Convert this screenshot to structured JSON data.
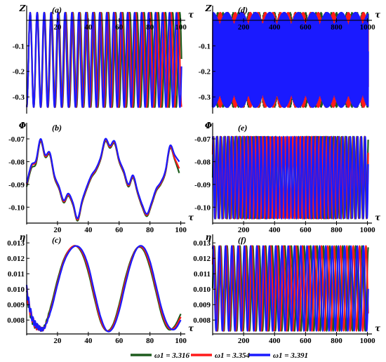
{
  "chart_data": [
    {
      "panel": "(a)",
      "type": "line",
      "ylabel": "Z",
      "xlabel": "τ",
      "xlim": [
        0,
        102
      ],
      "ylim": [
        -0.36,
        0.03
      ],
      "xticks": [
        "20",
        "40",
        "60",
        "80",
        "100"
      ],
      "yticks": [
        "-0.1",
        "-0.2",
        "-0.3"
      ],
      "series": [
        {
          "name": "ω1 = 3.316",
          "color": "#1d5c1d",
          "oscillation": {
            "min": -0.34,
            "max": 0.03,
            "period": 4.62
          }
        },
        {
          "name": "ω1 = 3.354",
          "color": "#ff1a1a",
          "oscillation": {
            "min": -0.34,
            "max": 0.03,
            "period": 4.57
          }
        },
        {
          "name": "ω1 = 3.391",
          "color": "#1a1aff",
          "oscillation": {
            "min": -0.34,
            "max": 0.03,
            "period": 4.52
          }
        }
      ]
    },
    {
      "panel": "(d)",
      "type": "line",
      "ylabel": "Z",
      "xlabel": "τ",
      "xlim": [
        0,
        1020
      ],
      "ylim": [
        -0.36,
        0.03
      ],
      "xticks": [
        "200",
        "400",
        "600",
        "800",
        "1000"
      ],
      "yticks": [
        "-0.1",
        "-0.2",
        "-0.3"
      ],
      "series": [
        {
          "name": "ω1 = 3.316",
          "color": "#1d5c1d",
          "oscillation": {
            "min": -0.34,
            "max": 0.03,
            "period": 4.62
          }
        },
        {
          "name": "ω1 = 3.354",
          "color": "#ff1a1a",
          "oscillation": {
            "min": -0.34,
            "max": 0.03,
            "period": 4.57
          }
        },
        {
          "name": "ω1 = 3.391",
          "color": "#1a1aff",
          "oscillation": {
            "min": -0.34,
            "max": 0.03,
            "period": 4.52
          }
        }
      ]
    },
    {
      "panel": "(b)",
      "type": "line",
      "ylabel": "Φ",
      "xlabel": "τ",
      "xlim": [
        0,
        102
      ],
      "ylim": [
        -0.107,
        -0.066
      ],
      "xticks": [
        "20",
        "40",
        "60",
        "80",
        "100"
      ],
      "yticks": [
        "-0.07",
        "-0.08",
        "-0.09",
        "-0.10"
      ],
      "series": [
        {
          "name": "ω1 = 3.316",
          "color": "#1d5c1d",
          "x": [
            0,
            3,
            6,
            9,
            12,
            15,
            18,
            21,
            24,
            27,
            30,
            33,
            36,
            39,
            42,
            45,
            48,
            51,
            54,
            57,
            60,
            63,
            66,
            69,
            72,
            75,
            78,
            81,
            84,
            87,
            90,
            93,
            96,
            99
          ],
          "y": [
            -0.091,
            -0.083,
            -0.081,
            -0.071,
            -0.078,
            -0.077,
            -0.087,
            -0.092,
            -0.098,
            -0.095,
            -0.099,
            -0.106,
            -0.098,
            -0.092,
            -0.087,
            -0.084,
            -0.079,
            -0.071,
            -0.074,
            -0.072,
            -0.08,
            -0.085,
            -0.091,
            -0.087,
            -0.094,
            -0.1,
            -0.104,
            -0.099,
            -0.093,
            -0.09,
            -0.085,
            -0.074,
            -0.079,
            -0.085
          ]
        },
        {
          "name": "ω1 = 3.354",
          "color": "#ff1a1a",
          "x": [
            0,
            3,
            6,
            9,
            12,
            15,
            18,
            21,
            24,
            27,
            30,
            33,
            36,
            39,
            42,
            45,
            48,
            51,
            54,
            57,
            60,
            63,
            66,
            69,
            72,
            75,
            78,
            81,
            84,
            87,
            90,
            93,
            96,
            99
          ],
          "y": [
            -0.09,
            -0.082,
            -0.08,
            -0.0705,
            -0.0775,
            -0.0765,
            -0.0865,
            -0.0915,
            -0.0975,
            -0.0945,
            -0.0985,
            -0.1055,
            -0.0975,
            -0.0915,
            -0.0865,
            -0.0835,
            -0.0785,
            -0.0705,
            -0.0735,
            -0.0715,
            -0.0795,
            -0.0845,
            -0.0905,
            -0.0865,
            -0.0935,
            -0.0995,
            -0.1035,
            -0.0985,
            -0.0925,
            -0.0895,
            -0.0845,
            -0.0735,
            -0.0785,
            -0.083
          ]
        },
        {
          "name": "ω1 = 3.391",
          "color": "#1a1aff",
          "x": [
            0,
            3,
            6,
            9,
            12,
            15,
            18,
            21,
            24,
            27,
            30,
            33,
            36,
            39,
            42,
            45,
            48,
            51,
            54,
            57,
            60,
            63,
            66,
            69,
            72,
            75,
            78,
            81,
            84,
            87,
            90,
            93,
            96,
            99
          ],
          "y": [
            -0.0895,
            -0.0815,
            -0.0795,
            -0.07,
            -0.077,
            -0.076,
            -0.086,
            -0.091,
            -0.097,
            -0.094,
            -0.098,
            -0.105,
            -0.097,
            -0.091,
            -0.086,
            -0.083,
            -0.078,
            -0.07,
            -0.073,
            -0.071,
            -0.079,
            -0.084,
            -0.09,
            -0.086,
            -0.093,
            -0.099,
            -0.103,
            -0.098,
            -0.092,
            -0.089,
            -0.084,
            -0.073,
            -0.077,
            -0.08
          ]
        }
      ]
    },
    {
      "panel": "(e)",
      "type": "line",
      "ylabel": "Φ",
      "xlabel": "τ",
      "xlim": [
        0,
        1020
      ],
      "ylim": [
        -0.107,
        -0.066
      ],
      "xticks": [
        "200",
        "400",
        "600",
        "800",
        "1000"
      ],
      "yticks": [
        "-0.07",
        "-0.08",
        "-0.09",
        "-0.10"
      ],
      "series": [
        {
          "name": "ω1 = 3.316",
          "color": "#1d5c1d",
          "oscillation": {
            "min": -0.105,
            "max": -0.069,
            "period": 25
          }
        },
        {
          "name": "ω1 = 3.354",
          "color": "#ff1a1a",
          "oscillation": {
            "min": -0.105,
            "max": -0.069,
            "period": 24.5
          }
        },
        {
          "name": "ω1 = 3.391",
          "color": "#1a1aff",
          "oscillation": {
            "min": -0.105,
            "max": -0.069,
            "period": 24
          }
        }
      ]
    },
    {
      "panel": "(c)",
      "type": "line",
      "ylabel": "η",
      "xlabel": "τ",
      "xlim": [
        0,
        102
      ],
      "ylim": [
        0.0071,
        0.0131
      ],
      "xticks": [
        "20",
        "40",
        "60",
        "80",
        "100"
      ],
      "yticks": [
        "0.013",
        "0.012",
        "0.011",
        "0.010",
        "0.009",
        "0.008"
      ],
      "series": [
        {
          "name": "ω1 = 3.316",
          "color": "#1d5c1d",
          "x": [
            0,
            2,
            4,
            6,
            8,
            10,
            12,
            16,
            20,
            24,
            28,
            32,
            36,
            40,
            44,
            48,
            52,
            56,
            60,
            64,
            68,
            72,
            76,
            80,
            84,
            88,
            92,
            96,
            100
          ],
          "y": [
            0.0098,
            0.0086,
            0.0079,
            0.0076,
            0.0075,
            0.0074,
            0.0077,
            0.009,
            0.0106,
            0.0119,
            0.0126,
            0.0128,
            0.0123,
            0.0111,
            0.0094,
            0.0079,
            0.0073,
            0.0077,
            0.009,
            0.0107,
            0.012,
            0.0127,
            0.0125,
            0.0114,
            0.0098,
            0.0082,
            0.0074,
            0.0076,
            0.0084
          ]
        },
        {
          "name": "ω1 = 3.354",
          "color": "#ff1a1a",
          "x": [
            0,
            2,
            4,
            6,
            8,
            10,
            12,
            16,
            20,
            24,
            28,
            32,
            36,
            40,
            44,
            48,
            52,
            56,
            60,
            64,
            68,
            72,
            76,
            80,
            84,
            88,
            92,
            96,
            100
          ],
          "y": [
            0.0099,
            0.0087,
            0.008,
            0.0076,
            0.0075,
            0.0074,
            0.0076,
            0.0088,
            0.0104,
            0.0118,
            0.0126,
            0.0128,
            0.0124,
            0.0113,
            0.0096,
            0.008,
            0.0073,
            0.0076,
            0.0088,
            0.0105,
            0.0119,
            0.0127,
            0.0126,
            0.0116,
            0.01,
            0.0084,
            0.0075,
            0.0075,
            0.0082
          ]
        },
        {
          "name": "ω1 = 3.391",
          "color": "#1a1aff",
          "x": [
            0,
            2,
            4,
            6,
            8,
            10,
            12,
            16,
            20,
            24,
            28,
            32,
            36,
            40,
            44,
            48,
            52,
            56,
            60,
            64,
            68,
            72,
            76,
            80,
            84,
            88,
            92,
            96,
            100
          ],
          "y": [
            0.01,
            0.0088,
            0.008,
            0.0077,
            0.0075,
            0.0074,
            0.0076,
            0.0087,
            0.0103,
            0.0117,
            0.0125,
            0.0128,
            0.0125,
            0.0115,
            0.0098,
            0.0082,
            0.0073,
            0.0075,
            0.0086,
            0.0103,
            0.0118,
            0.0127,
            0.0127,
            0.0118,
            0.0102,
            0.0086,
            0.0076,
            0.0074,
            0.008
          ]
        }
      ]
    },
    {
      "panel": "(f)",
      "type": "line",
      "ylabel": "η",
      "xlabel": "τ",
      "xlim": [
        0,
        1020
      ],
      "ylim": [
        0.0071,
        0.0131
      ],
      "xticks": [
        "200",
        "400",
        "600",
        "800",
        "1000"
      ],
      "yticks": [
        "0.013",
        "0.012",
        "0.011",
        "0.010",
        "0.009",
        "0.008"
      ],
      "series": [
        {
          "name": "ω1 = 3.316",
          "color": "#1d5c1d",
          "oscillation": {
            "min": 0.0073,
            "max": 0.0128,
            "period": 41.5
          }
        },
        {
          "name": "ω1 = 3.354",
          "color": "#ff1a1a",
          "oscillation": {
            "min": 0.0073,
            "max": 0.0128,
            "period": 41
          }
        },
        {
          "name": "ω1 = 3.391",
          "color": "#1a1aff",
          "oscillation": {
            "min": 0.0073,
            "max": 0.0128,
            "period": 40.5
          }
        }
      ]
    }
  ],
  "legend": {
    "placement": "bottom-center",
    "entries": [
      {
        "label": "ω1 = 3.316",
        "color": "#1d5c1d"
      },
      {
        "label": "ω1 = 3.354",
        "color": "#ff1a1a"
      },
      {
        "label": "ω1 = 3.391",
        "color": "#1a1aff"
      }
    ]
  }
}
